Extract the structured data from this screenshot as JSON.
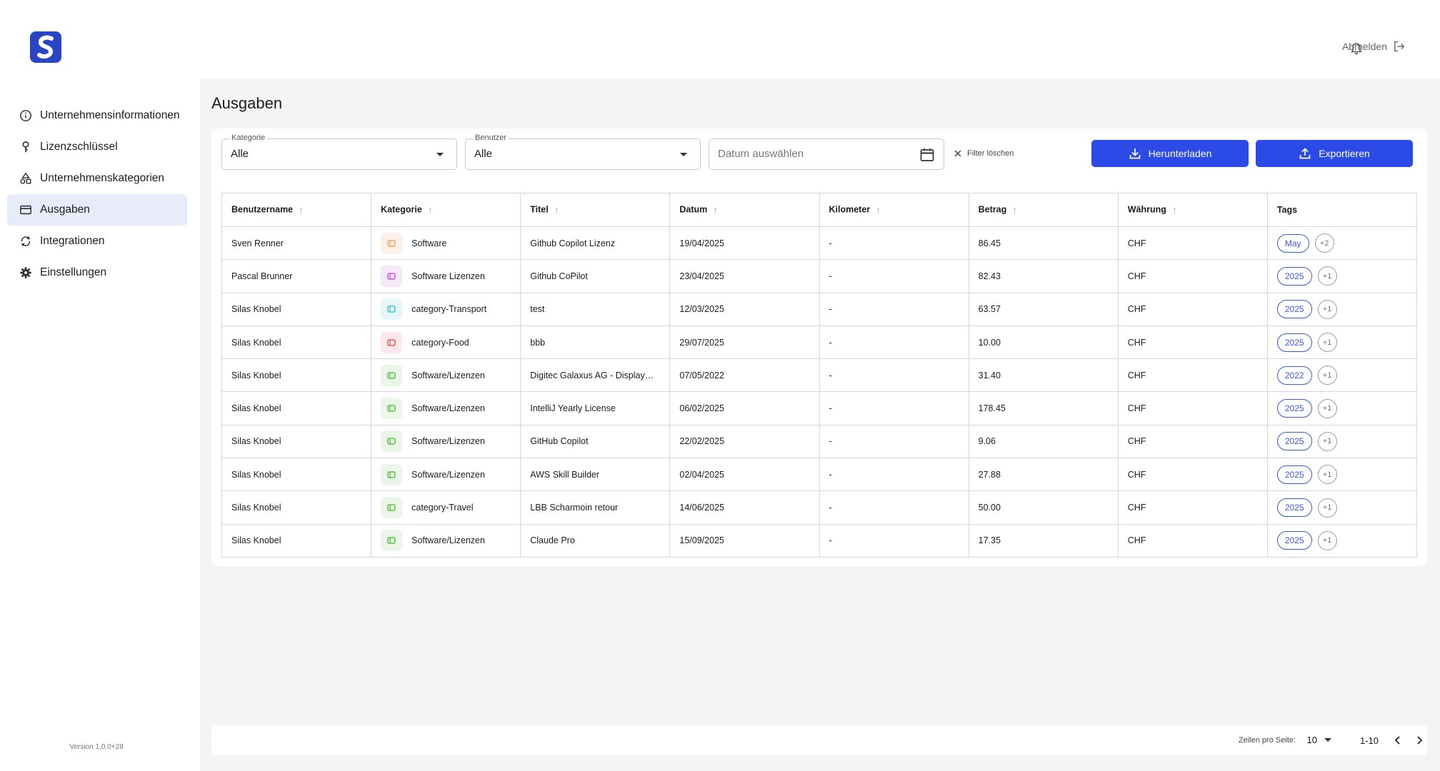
{
  "sidebar": {
    "items": [
      {
        "label": "Unternehmensinformationen",
        "icon": "info-icon"
      },
      {
        "label": "Lizenzschlüssel",
        "icon": "key-icon"
      },
      {
        "label": "Unternehmenskategorien",
        "icon": "shapes-icon"
      },
      {
        "label": "Ausgaben",
        "icon": "credit-card-icon",
        "active": true
      },
      {
        "label": "Integrationen",
        "icon": "sync-icon"
      },
      {
        "label": "Einstellungen",
        "icon": "gear-icon"
      }
    ],
    "version": "Version 1.0.0+28"
  },
  "topbar": {
    "logout_label": "Abmelden"
  },
  "page": {
    "title": "Ausgaben"
  },
  "filters": {
    "kategorie_legend": "Kategorie",
    "kategorie_value": "Alle",
    "benutzer_legend": "Benutzer",
    "benutzer_value": "Alle",
    "date_placeholder": "Datum auswählen",
    "clear_label": "Filter löschen",
    "download_label": "Herunterladen",
    "export_label": "Exportieren"
  },
  "table": {
    "headers": {
      "user": "Benutzername",
      "category": "Kategorie",
      "title": "Titel",
      "date": "Datum",
      "km": "Kilometer",
      "amount": "Betrag",
      "currency": "Währung",
      "tags": "Tags"
    },
    "rows": [
      {
        "user": "Sven Renner",
        "category": "Software",
        "cat_color": "#f5a46b",
        "cat_bg": "#fdf1e7",
        "title": "Github Copilot Lizenz",
        "date": "19/04/2025",
        "km": "-",
        "amount": "86.45",
        "currency": "CHF",
        "tag": "May",
        "more": "+2"
      },
      {
        "user": "Pascal Brunner",
        "category": "Software Lizenzen",
        "cat_color": "#c15ee6",
        "cat_bg": "#f6e8fb",
        "title": "Github CoPilot",
        "date": "23/04/2025",
        "km": "-",
        "amount": "82.43",
        "currency": "CHF",
        "tag": "2025",
        "more": "+1"
      },
      {
        "user": "Silas Knobel",
        "category": "category-Transport",
        "cat_color": "#3fc2d4",
        "cat_bg": "#e6f7fa",
        "title": "test",
        "date": "12/03/2025",
        "km": "-",
        "amount": "63.57",
        "currency": "CHF",
        "tag": "2025",
        "more": "+1"
      },
      {
        "user": "Silas Knobel",
        "category": "category-Food",
        "cat_color": "#e45a5a",
        "cat_bg": "#fbe9e9",
        "title": "bbb",
        "date": "29/07/2025",
        "km": "-",
        "amount": "10.00",
        "currency": "CHF",
        "tag": "2025",
        "more": "+1"
      },
      {
        "user": "Silas Knobel",
        "category": "Software/Lizenzen",
        "cat_color": "#5cbf4a",
        "cat_bg": "#eaf6e7",
        "title": "Digitec Galaxus AG - Display…",
        "date": "07/05/2022",
        "km": "-",
        "amount": "31.40",
        "currency": "CHF",
        "tag": "2022",
        "more": "+1"
      },
      {
        "user": "Silas Knobel",
        "category": "Software/Lizenzen",
        "cat_color": "#5cbf4a",
        "cat_bg": "#eaf6e7",
        "title": "IntelliJ Yearly License",
        "date": "06/02/2025",
        "km": "-",
        "amount": "178.45",
        "currency": "CHF",
        "tag": "2025",
        "more": "+1"
      },
      {
        "user": "Silas Knobel",
        "category": "Software/Lizenzen",
        "cat_color": "#5cbf4a",
        "cat_bg": "#eaf6e7",
        "title": "GitHub Copilot",
        "date": "22/02/2025",
        "km": "-",
        "amount": "9.06",
        "currency": "CHF",
        "tag": "2025",
        "more": "+1"
      },
      {
        "user": "Silas Knobel",
        "category": "Software/Lizenzen",
        "cat_color": "#5cbf4a",
        "cat_bg": "#eaf6e7",
        "title": "AWS Skill Builder",
        "date": "02/04/2025",
        "km": "-",
        "amount": "27.88",
        "currency": "CHF",
        "tag": "2025",
        "more": "+1"
      },
      {
        "user": "Silas Knobel",
        "category": "category-Travel",
        "cat_color": "#5cbf4a",
        "cat_bg": "#eaf6e7",
        "title": "LBB Scharmoin retour",
        "date": "14/06/2025",
        "km": "-",
        "amount": "50.00",
        "currency": "CHF",
        "tag": "2025",
        "more": "+1"
      },
      {
        "user": "Silas Knobel",
        "category": "Software/Lizenzen",
        "cat_color": "#5cbf4a",
        "cat_bg": "#eaf6e7",
        "title": "Claude Pro",
        "date": "15/09/2025",
        "km": "-",
        "amount": "17.35",
        "currency": "CHF",
        "tag": "2025",
        "more": "+1"
      }
    ]
  },
  "pagination": {
    "rows_per_page_label": "Zeilen pro Seite:",
    "rows_per_page": "10",
    "range": "1-10"
  },
  "colors": {
    "accent": "#2c4ae6",
    "active_nav_bg": "#e8ebfa",
    "logo_bg": "#2a45c4"
  }
}
